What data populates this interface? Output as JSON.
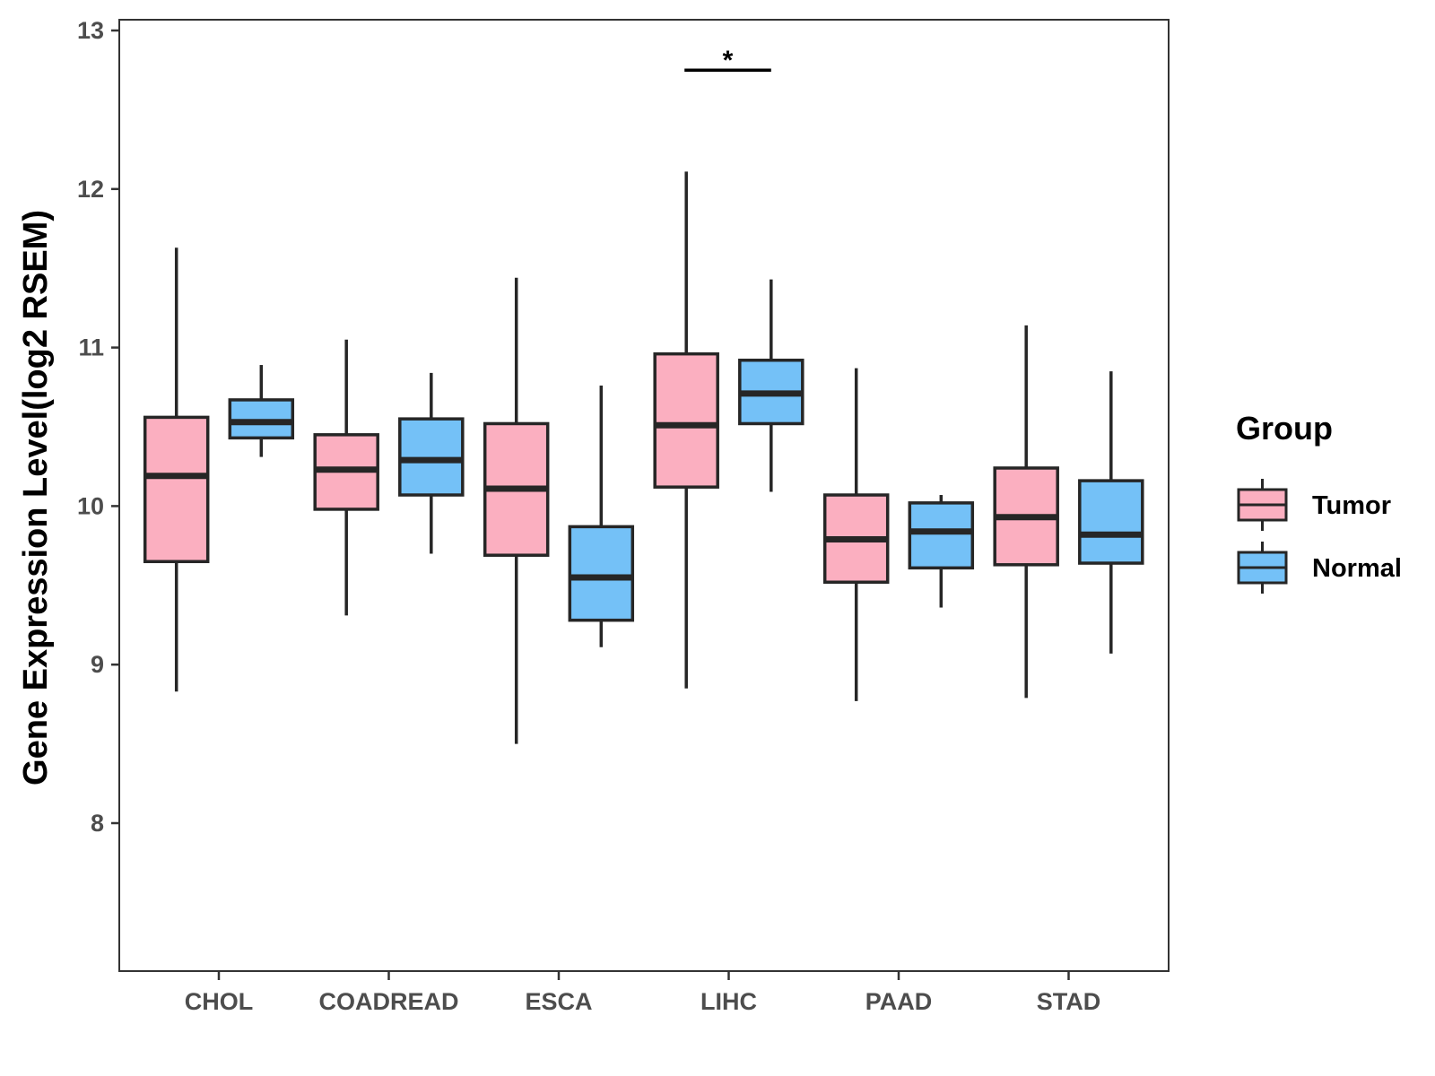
{
  "chart_data": {
    "type": "box",
    "title": "",
    "xlabel": "",
    "ylabel": "Gene Expression Level(log2 RSEM)",
    "ylim": [
      7.05,
      13.0
    ],
    "yticks": [
      8,
      9,
      10,
      11,
      12,
      13
    ],
    "categories": [
      "CHOL",
      "COADREAD",
      "ESCA",
      "LIHC",
      "PAAD",
      "STAD"
    ],
    "legend": {
      "title": "Group",
      "position": "right",
      "items": [
        {
          "label": "Tumor",
          "color": "#fbafc0"
        },
        {
          "label": "Normal",
          "color": "#74c1f7"
        }
      ]
    },
    "series": [
      {
        "name": "Tumor",
        "color": "#fbafc0",
        "boxes": [
          {
            "category": "CHOL",
            "whisker_low": 8.83,
            "q1": 9.65,
            "median": 10.19,
            "q3": 10.56,
            "whisker_high": 11.63
          },
          {
            "category": "COADREAD",
            "whisker_low": 9.31,
            "q1": 9.98,
            "median": 10.23,
            "q3": 10.45,
            "whisker_high": 11.05
          },
          {
            "category": "ESCA",
            "whisker_low": 8.5,
            "q1": 9.69,
            "median": 10.11,
            "q3": 10.52,
            "whisker_high": 11.44
          },
          {
            "category": "LIHC",
            "whisker_low": 8.85,
            "q1": 10.12,
            "median": 10.51,
            "q3": 10.96,
            "whisker_high": 12.11
          },
          {
            "category": "PAAD",
            "whisker_low": 8.77,
            "q1": 9.52,
            "median": 9.79,
            "q3": 10.07,
            "whisker_high": 10.87
          },
          {
            "category": "STAD",
            "whisker_low": 8.79,
            "q1": 9.63,
            "median": 9.93,
            "q3": 10.24,
            "whisker_high": 11.14
          }
        ]
      },
      {
        "name": "Normal",
        "color": "#74c1f7",
        "boxes": [
          {
            "category": "CHOL",
            "whisker_low": 10.31,
            "q1": 10.43,
            "median": 10.53,
            "q3": 10.67,
            "whisker_high": 10.89
          },
          {
            "category": "COADREAD",
            "whisker_low": 9.7,
            "q1": 10.07,
            "median": 10.29,
            "q3": 10.55,
            "whisker_high": 10.84
          },
          {
            "category": "ESCA",
            "whisker_low": 9.11,
            "q1": 9.28,
            "median": 9.55,
            "q3": 9.87,
            "whisker_high": 10.76
          },
          {
            "category": "LIHC",
            "whisker_low": 10.09,
            "q1": 10.52,
            "median": 10.71,
            "q3": 10.92,
            "whisker_high": 11.43
          },
          {
            "category": "PAAD",
            "whisker_low": 9.36,
            "q1": 9.61,
            "median": 9.84,
            "q3": 10.02,
            "whisker_high": 10.07
          },
          {
            "category": "STAD",
            "whisker_low": 9.07,
            "q1": 9.64,
            "median": 9.82,
            "q3": 10.16,
            "whisker_high": 10.85
          }
        ]
      }
    ],
    "annotations": [
      {
        "category": "LIHC",
        "label": "*",
        "y": 12.75
      }
    ]
  }
}
